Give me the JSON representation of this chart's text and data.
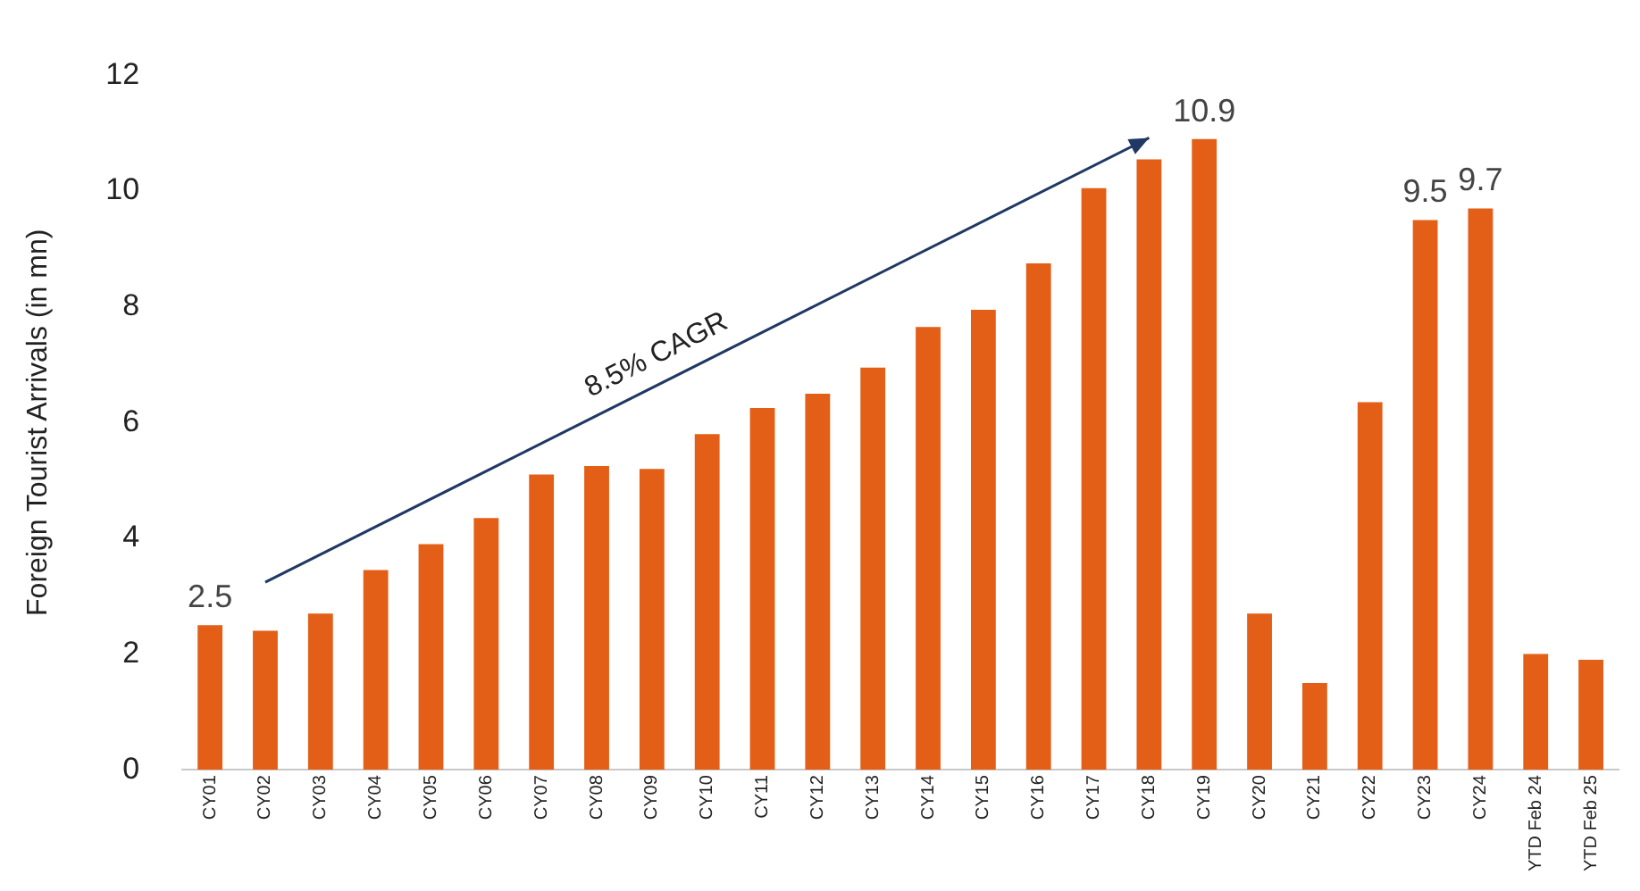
{
  "chart_data": {
    "type": "bar",
    "ylabel": "Foreign Tourist Arrivals (in mn)",
    "categories": [
      "CY01",
      "CY02",
      "CY03",
      "CY04",
      "CY05",
      "CY06",
      "CY07",
      "CY08",
      "CY09",
      "CY10",
      "CY11",
      "CY12",
      "CY13",
      "CY14",
      "CY15",
      "CY16",
      "CY17",
      "CY18",
      "CY19",
      "CY20",
      "CY21",
      "CY22",
      "CY23",
      "CY24",
      "YTD Feb 24",
      "YTD Feb 25"
    ],
    "values": [
      2.5,
      2.4,
      2.7,
      3.45,
      3.9,
      4.35,
      5.1,
      5.25,
      5.2,
      5.8,
      6.25,
      6.5,
      6.95,
      7.65,
      7.95,
      8.75,
      10.05,
      10.55,
      10.9,
      2.7,
      1.5,
      6.35,
      9.5,
      9.7,
      2.0,
      1.9
    ],
    "value_labels": [
      "2.5",
      null,
      null,
      null,
      null,
      null,
      null,
      null,
      null,
      null,
      null,
      null,
      null,
      null,
      null,
      null,
      null,
      null,
      "10.9",
      null,
      null,
      null,
      "9.5",
      "9.7",
      null,
      null
    ],
    "color": "#e35f17",
    "ylim": [
      0,
      12
    ],
    "yticks": [
      0,
      2,
      4,
      6,
      8,
      10,
      12
    ],
    "grid": false,
    "annotations": [
      "8.5% CAGR"
    ]
  }
}
